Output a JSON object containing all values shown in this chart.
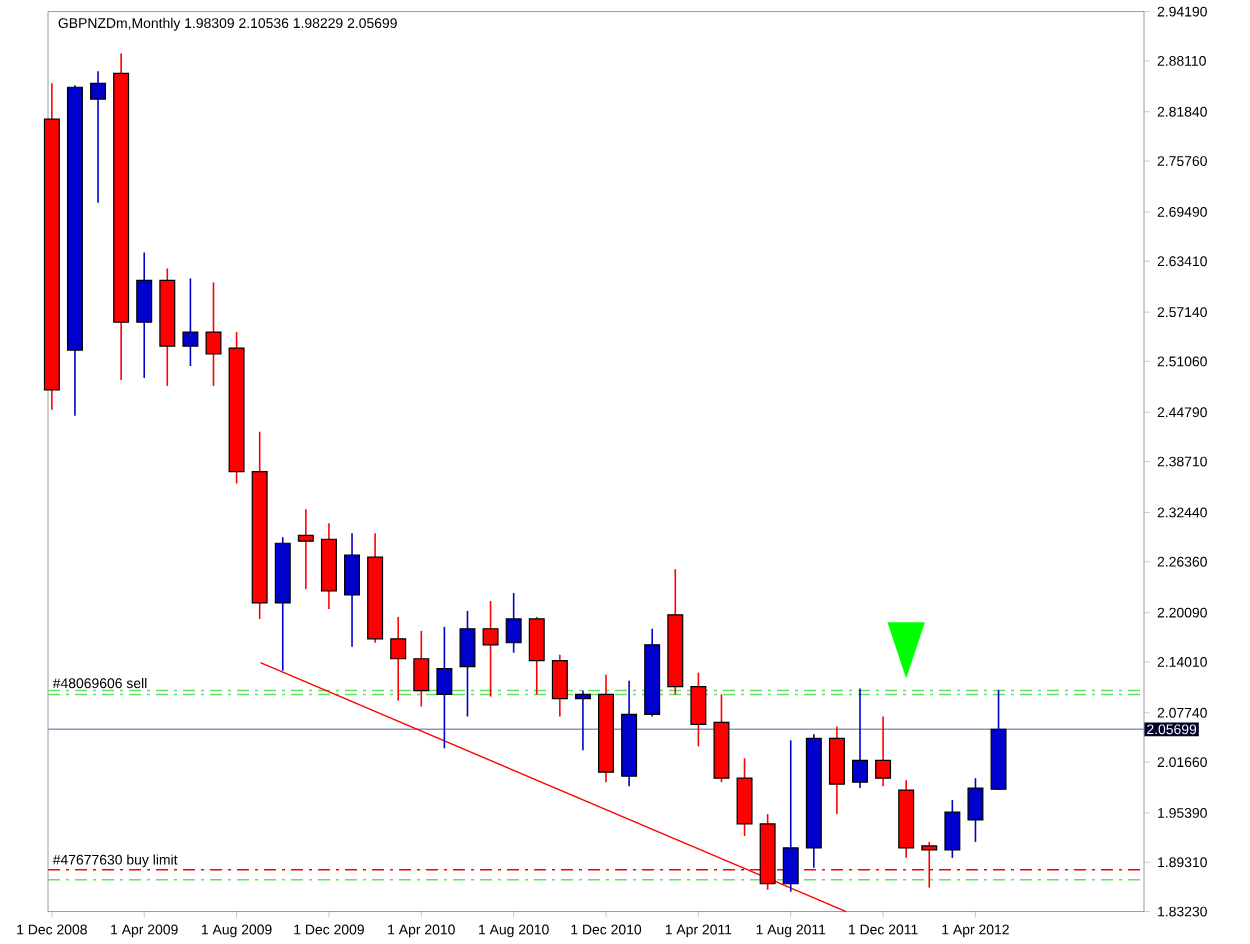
{
  "chart_data": {
    "type": "candlestick",
    "title": "GBPNZDm,Monthly  1.98309 2.10536 1.98229 2.05699",
    "x": [
      "2008-12",
      "2009-01",
      "2009-02",
      "2009-03",
      "2009-04",
      "2009-05",
      "2009-06",
      "2009-07",
      "2009-08",
      "2009-09",
      "2009-10",
      "2009-11",
      "2009-12",
      "2010-01",
      "2010-02",
      "2010-03",
      "2010-04",
      "2010-05",
      "2010-06",
      "2010-07",
      "2010-08",
      "2010-09",
      "2010-10",
      "2010-11",
      "2010-12",
      "2011-01",
      "2011-02",
      "2011-03",
      "2011-04",
      "2011-05",
      "2011-06",
      "2011-07",
      "2011-08",
      "2011-09",
      "2011-10",
      "2011-11",
      "2011-12",
      "2012-01",
      "2012-02",
      "2012-03",
      "2012-04",
      "2012-05"
    ],
    "ohlc": [
      [
        2.8093,
        2.8535,
        2.4509,
        2.4755
      ],
      [
        2.5245,
        2.851,
        2.4435,
        2.8486
      ],
      [
        2.834,
        2.8683,
        2.7062,
        2.8535
      ],
      [
        2.8658,
        2.8903,
        2.4877,
        2.5589
      ],
      [
        2.5589,
        2.6448,
        2.4902,
        2.6105
      ],
      [
        2.6105,
        2.6252,
        2.4804,
        2.5295
      ],
      [
        2.5295,
        2.6129,
        2.5049,
        2.5467
      ],
      [
        2.5467,
        2.608,
        2.4804,
        2.5197
      ],
      [
        2.527,
        2.5467,
        2.3601,
        2.3748
      ],
      [
        2.3748,
        2.4239,
        2.1931,
        2.2128
      ],
      [
        2.2128,
        2.2938,
        2.1293,
        2.2864
      ],
      [
        2.2962,
        2.3282,
        2.23,
        2.2889
      ],
      [
        2.2913,
        2.311,
        2.2054,
        2.2275
      ],
      [
        2.2226,
        2.2987,
        2.1587,
        2.2717
      ],
      [
        2.2692,
        2.2987,
        2.1637,
        2.1686
      ],
      [
        2.1686,
        2.1956,
        2.0925,
        2.144
      ],
      [
        2.144,
        2.1784,
        2.0851,
        2.1048
      ],
      [
        2.1,
        2.1833,
        2.0335,
        2.132
      ],
      [
        2.1342,
        2.2029,
        2.0728,
        2.181
      ],
      [
        2.181,
        2.2152,
        2.0974,
        2.1612
      ],
      [
        2.1637,
        2.2251,
        2.1514,
        2.1931
      ],
      [
        2.1931,
        2.1956,
        2.1,
        2.1416
      ],
      [
        2.1416,
        2.149,
        2.0728,
        2.0949
      ],
      [
        2.0949,
        2.1048,
        2.0311,
        2.1
      ],
      [
        2.1,
        2.1244,
        1.9918,
        2.0041
      ],
      [
        1.9992,
        2.117,
        1.9869,
        2.0753
      ],
      [
        2.0753,
        2.181,
        2.0728,
        2.1612
      ],
      [
        2.1981,
        2.2545,
        2.1,
        2.1097
      ],
      [
        2.1097,
        2.1269,
        2.036,
        2.063
      ],
      [
        2.0655,
        2.1,
        1.9918,
        1.9967
      ],
      [
        1.9967,
        2.0213,
        1.9255,
        1.9403
      ],
      [
        1.9403,
        1.9525,
        1.8592,
        1.8666
      ],
      [
        1.8666,
        2.0434,
        1.8568,
        1.9108
      ],
      [
        1.9108,
        2.0508,
        1.8862,
        2.0458
      ],
      [
        2.0458,
        2.0606,
        1.9525,
        1.9894
      ],
      [
        1.9918,
        2.1072,
        1.9845,
        2.0188
      ],
      [
        2.0188,
        2.0728,
        1.9869,
        1.9967
      ],
      [
        1.982,
        1.9943,
        1.8985,
        1.9108
      ],
      [
        1.9133,
        1.9182,
        1.8617,
        1.9084
      ],
      [
        1.9084,
        1.9697,
        1.8985,
        1.955
      ],
      [
        1.9452,
        1.9967,
        1.9182,
        1.9845
      ],
      [
        1.98309,
        2.10536,
        1.98229,
        2.05699
      ]
    ],
    "colors": [
      "#ff0000",
      "#0000cc",
      "#0000cc",
      "#ff0000",
      "#0000cc",
      "#ff0000",
      "#0000cc",
      "#ff0000",
      "#ff0000",
      "#ff0000",
      "#0000cc",
      "#ff0000",
      "#ff0000",
      "#0000cc",
      "#ff0000",
      "#ff0000",
      "#ff0000",
      "#0000cc",
      "#0000cc",
      "#ff0000",
      "#0000cc",
      "#ff0000",
      "#ff0000",
      "#0000cc",
      "#ff0000",
      "#0000cc",
      "#0000cc",
      "#ff0000",
      "#ff0000",
      "#ff0000",
      "#ff0000",
      "#ff0000",
      "#0000cc",
      "#0000cc",
      "#ff0000",
      "#0000cc",
      "#ff0000",
      "#ff0000",
      "#ff0000",
      "#0000cc",
      "#0000cc",
      "#0000cc"
    ],
    "series": [
      {
        "type": "line",
        "x": [
          "2009-09-02",
          "2011-10-13"
        ],
        "values": [
          2.1391,
          1.8323
        ],
        "color": "#ff0000"
      },
      {
        "type": "scatter",
        "x": [
          "2012-01"
        ],
        "values": [
          2.166
        ],
        "color": "#00ff00",
        "marker": "triangle"
      }
    ],
    "xlim": [
      "2008-11-26",
      "2012-11-10"
    ],
    "xticks": [
      {
        "value": "2008-12",
        "label": "1 Dec 2008"
      },
      {
        "value": "2009-04",
        "label": "1 Apr 2009"
      },
      {
        "value": "2009-08",
        "label": "1 Aug 2009"
      },
      {
        "value": "2009-12",
        "label": "1 Dec 2009"
      },
      {
        "value": "2010-04",
        "label": "1 Apr 2010"
      },
      {
        "value": "2010-08",
        "label": "1 Aug 2010"
      },
      {
        "value": "2010-12",
        "label": "1 Dec 2010"
      },
      {
        "value": "2011-04",
        "label": "1 Apr 2011"
      },
      {
        "value": "2011-08",
        "label": "1 Aug 2011"
      },
      {
        "value": "2011-12",
        "label": "1 Dec 2011"
      },
      {
        "value": "2012-04",
        "label": "1 Apr 2012"
      }
    ],
    "ylim": [
      1.8323,
      2.9419
    ],
    "yticks": [
      {
        "value": 1.8323,
        "label": "1.83230"
      },
      {
        "value": 1.8931,
        "label": "1.89310"
      },
      {
        "value": 1.9539,
        "label": "1.95390"
      },
      {
        "value": 2.0166,
        "label": "2.01660"
      },
      {
        "value": 2.0774,
        "label": "2.07740"
      },
      {
        "value": 2.1401,
        "label": "2.14010"
      },
      {
        "value": 2.2009,
        "label": "2.20090"
      },
      {
        "value": 2.2636,
        "label": "2.26360"
      },
      {
        "value": 2.3244,
        "label": "2.32440"
      },
      {
        "value": 2.3871,
        "label": "2.38710"
      },
      {
        "value": 2.4479,
        "label": "2.44790"
      },
      {
        "value": 2.5106,
        "label": "2.51060"
      },
      {
        "value": 2.5714,
        "label": "2.57140"
      },
      {
        "value": 2.6341,
        "label": "2.63410"
      },
      {
        "value": 2.6949,
        "label": "2.69490"
      },
      {
        "value": 2.7576,
        "label": "2.75760"
      },
      {
        "value": 2.8184,
        "label": "2.81840"
      },
      {
        "value": 2.8811,
        "label": "2.88110"
      },
      {
        "value": 2.9419,
        "label": "2.94190"
      }
    ],
    "ref_lines": [
      {
        "axis": "y",
        "value": 2.1048,
        "label": "#48069606 sell",
        "color": "#66dd66",
        "line_style": "dashed"
      },
      {
        "axis": "y",
        "value": 2.1,
        "color": "#66dd66",
        "line_style": "dashed"
      },
      {
        "axis": "y",
        "value": 2.05699,
        "label": "2.05699",
        "color": "#8899bb",
        "line_style": "solid"
      },
      {
        "axis": "y",
        "value": 1.8838,
        "label": "#47677630 buy limit",
        "color": "#ff0000",
        "line_style": "dashed"
      },
      {
        "axis": "y",
        "value": 1.8715,
        "color": "#66dd66",
        "line_style": "dashed"
      }
    ]
  }
}
